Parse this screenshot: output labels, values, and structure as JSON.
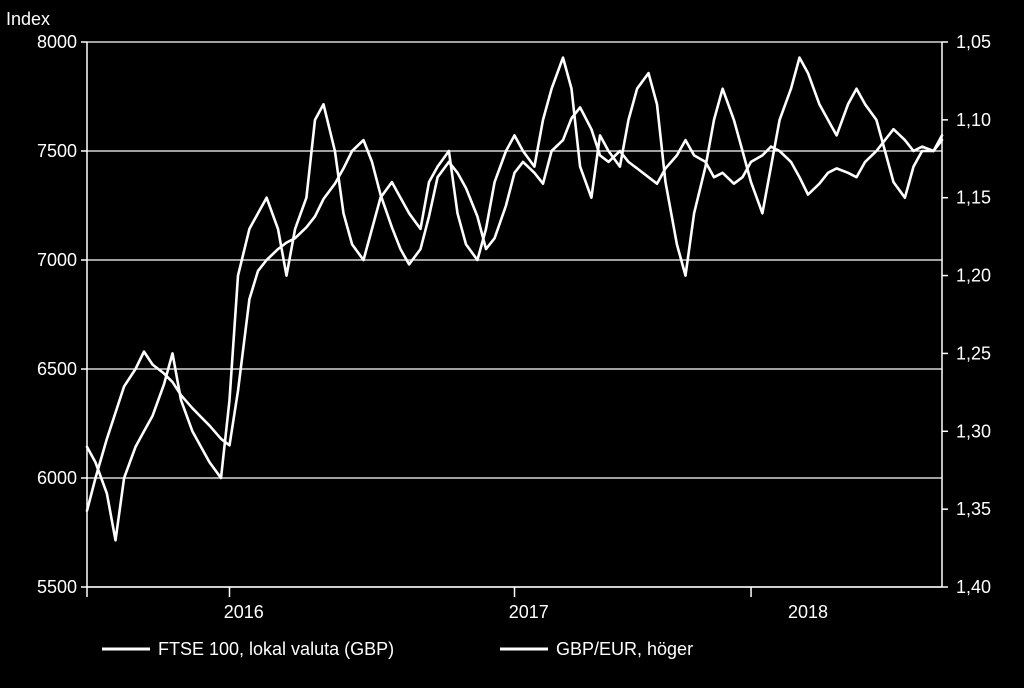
{
  "chart_data": {
    "type": "line",
    "title": "",
    "ylabel": "Index",
    "ylabel_right": "",
    "xlabel": "",
    "x_tick_labels": [
      "2016",
      "2017",
      "2018"
    ],
    "y_left": {
      "min": 5500,
      "max": 8000,
      "ticks": [
        "5500",
        "6000",
        "6500",
        "7000",
        "7500",
        "8000"
      ]
    },
    "y_right": {
      "min": 1.05,
      "max": 1.4,
      "inverted": true,
      "ticks": [
        "1,05",
        "1,10",
        "1,15",
        "1,20",
        "1,25",
        "1,30",
        "1,35",
        "1,40"
      ]
    },
    "grid": true,
    "legend_position": "bottom",
    "colors": {
      "background": "#000000",
      "line": "#ffffff",
      "grid": "#ffffff"
    },
    "series": [
      {
        "name": "FTSE 100, lokal valuta (GBP)",
        "axis": "left",
        "x": [
          2015.5,
          2015.53,
          2015.57,
          2015.6,
          2015.63,
          2015.67,
          2015.7,
          2015.73,
          2015.77,
          2015.8,
          2015.83,
          2015.87,
          2015.9,
          2015.93,
          2015.97,
          2016.0,
          2016.03,
          2016.07,
          2016.1,
          2016.13,
          2016.17,
          2016.2,
          2016.23,
          2016.27,
          2016.3,
          2016.33,
          2016.37,
          2016.4,
          2016.43,
          2016.47,
          2016.5,
          2016.53,
          2016.57,
          2016.6,
          2016.63,
          2016.67,
          2016.7,
          2016.73,
          2016.77,
          2016.8,
          2016.83,
          2016.87,
          2016.9,
          2016.93,
          2016.97,
          2017.0,
          2017.03,
          2017.07,
          2017.1,
          2017.13,
          2017.17,
          2017.2,
          2017.23,
          2017.27,
          2017.3,
          2017.33,
          2017.37,
          2017.4,
          2017.43,
          2017.47,
          2017.5,
          2017.53,
          2017.57,
          2017.6,
          2017.63,
          2017.67,
          2017.7,
          2017.73,
          2017.77,
          2017.8,
          2017.83,
          2017.87,
          2017.9,
          2017.93,
          2017.97,
          2018.0,
          2018.03,
          2018.07,
          2018.1,
          2018.13,
          2018.17,
          2018.2,
          2018.23,
          2018.27,
          2018.3,
          2018.33,
          2018.37,
          2018.4,
          2018.43,
          2018.47,
          2018.5
        ],
        "values": [
          5850,
          6000,
          6180,
          6300,
          6420,
          6500,
          6580,
          6520,
          6480,
          6440,
          6380,
          6320,
          6280,
          6240,
          6180,
          6150,
          6400,
          6820,
          6950,
          7000,
          7050,
          7080,
          7100,
          7150,
          7200,
          7280,
          7350,
          7420,
          7500,
          7550,
          7450,
          7300,
          7150,
          7050,
          6980,
          7050,
          7200,
          7380,
          7450,
          7400,
          7330,
          7200,
          7050,
          7100,
          7250,
          7400,
          7450,
          7400,
          7350,
          7500,
          7550,
          7650,
          7700,
          7600,
          7480,
          7450,
          7500,
          7450,
          7420,
          7380,
          7350,
          7420,
          7480,
          7550,
          7480,
          7450,
          7380,
          7400,
          7350,
          7380,
          7450,
          7480,
          7520,
          7500,
          7450,
          7380,
          7300,
          7350,
          7400,
          7420,
          7400,
          7380,
          7450,
          7500,
          7550,
          7600,
          7550,
          7500,
          7520,
          7500,
          7550
        ]
      },
      {
        "name": "GBP/EUR, höger",
        "axis": "right",
        "x": [
          2015.5,
          2015.53,
          2015.57,
          2015.6,
          2015.63,
          2015.67,
          2015.7,
          2015.73,
          2015.77,
          2015.8,
          2015.83,
          2015.87,
          2015.9,
          2015.93,
          2015.97,
          2016.0,
          2016.03,
          2016.07,
          2016.1,
          2016.13,
          2016.17,
          2016.2,
          2016.23,
          2016.27,
          2016.3,
          2016.33,
          2016.37,
          2016.4,
          2016.43,
          2016.47,
          2016.5,
          2016.53,
          2016.57,
          2016.6,
          2016.63,
          2016.67,
          2016.7,
          2016.73,
          2016.77,
          2016.8,
          2016.83,
          2016.87,
          2016.9,
          2016.93,
          2016.97,
          2017.0,
          2017.03,
          2017.07,
          2017.1,
          2017.13,
          2017.17,
          2017.2,
          2017.23,
          2017.27,
          2017.3,
          2017.33,
          2017.37,
          2017.4,
          2017.43,
          2017.47,
          2017.5,
          2017.53,
          2017.57,
          2017.6,
          2017.63,
          2017.67,
          2017.7,
          2017.73,
          2017.77,
          2017.8,
          2017.83,
          2017.87,
          2017.9,
          2017.93,
          2017.97,
          2018.0,
          2018.03,
          2018.07,
          2018.1,
          2018.13,
          2018.17,
          2018.2,
          2018.23,
          2018.27,
          2018.3,
          2018.33,
          2018.37,
          2018.4,
          2018.43,
          2018.47,
          2018.5
        ],
        "values": [
          1.31,
          1.32,
          1.34,
          1.37,
          1.33,
          1.31,
          1.3,
          1.29,
          1.27,
          1.25,
          1.28,
          1.3,
          1.31,
          1.32,
          1.33,
          1.28,
          1.2,
          1.17,
          1.16,
          1.15,
          1.17,
          1.2,
          1.17,
          1.15,
          1.1,
          1.09,
          1.12,
          1.16,
          1.18,
          1.19,
          1.17,
          1.15,
          1.14,
          1.15,
          1.16,
          1.17,
          1.14,
          1.13,
          1.12,
          1.16,
          1.18,
          1.19,
          1.17,
          1.14,
          1.12,
          1.11,
          1.12,
          1.13,
          1.1,
          1.08,
          1.06,
          1.08,
          1.13,
          1.15,
          1.11,
          1.12,
          1.13,
          1.1,
          1.08,
          1.07,
          1.09,
          1.14,
          1.18,
          1.2,
          1.16,
          1.13,
          1.1,
          1.08,
          1.1,
          1.12,
          1.14,
          1.16,
          1.13,
          1.1,
          1.08,
          1.06,
          1.07,
          1.09,
          1.1,
          1.11,
          1.09,
          1.08,
          1.09,
          1.1,
          1.12,
          1.14,
          1.15,
          1.13,
          1.12,
          1.12,
          1.11
        ]
      }
    ]
  }
}
